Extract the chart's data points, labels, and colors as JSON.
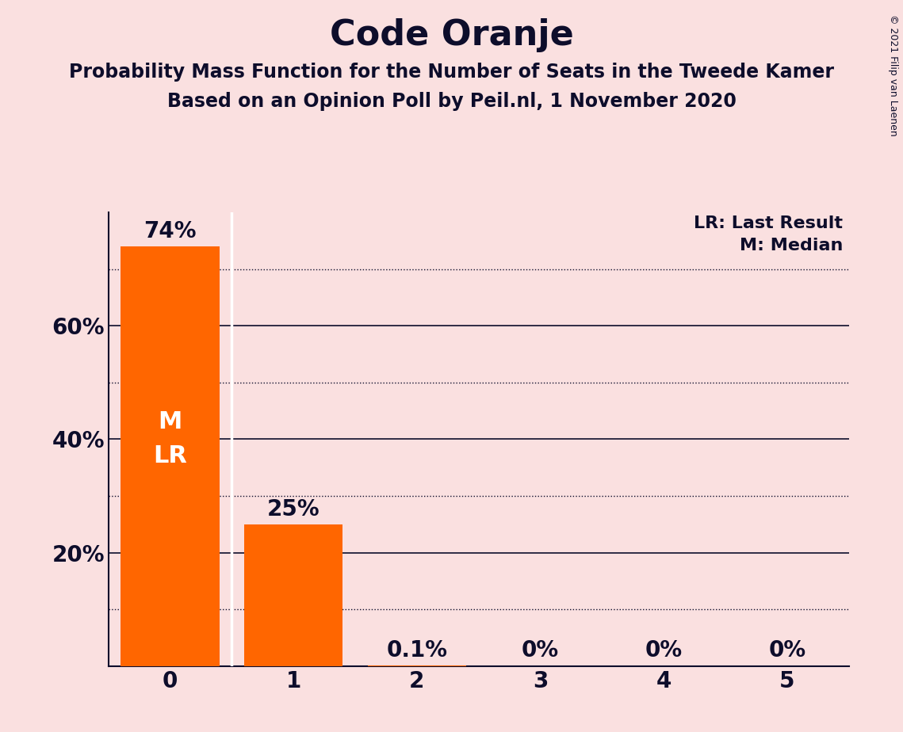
{
  "title": "Code Oranje",
  "subtitle1": "Probability Mass Function for the Number of Seats in the Tweede Kamer",
  "subtitle2": "Based on an Opinion Poll by Peil.nl, 1 November 2020",
  "copyright": "© 2021 Filip van Laenen",
  "legend_lr": "LR: Last Result",
  "legend_m": "M: Median",
  "categories": [
    0,
    1,
    2,
    3,
    4,
    5
  ],
  "values": [
    0.74,
    0.25,
    0.001,
    0.0,
    0.0,
    0.0
  ],
  "bar_labels": [
    "74%",
    "25%",
    "0.1%",
    "0%",
    "0%",
    "0%"
  ],
  "bar_color": "#FF6600",
  "background_color": "#FAE0E0",
  "text_color": "#0D0D2B",
  "ylim_max": 0.8,
  "title_fontsize": 32,
  "subtitle_fontsize": 17,
  "axis_label_fontsize": 20,
  "bar_label_fontsize": 20,
  "inside_label_fontsize": 22,
  "copyright_fontsize": 9,
  "legend_fontsize": 16,
  "grid_solid": [
    0.2,
    0.4,
    0.6
  ],
  "grid_dotted": [
    0.1,
    0.3,
    0.5,
    0.7
  ]
}
